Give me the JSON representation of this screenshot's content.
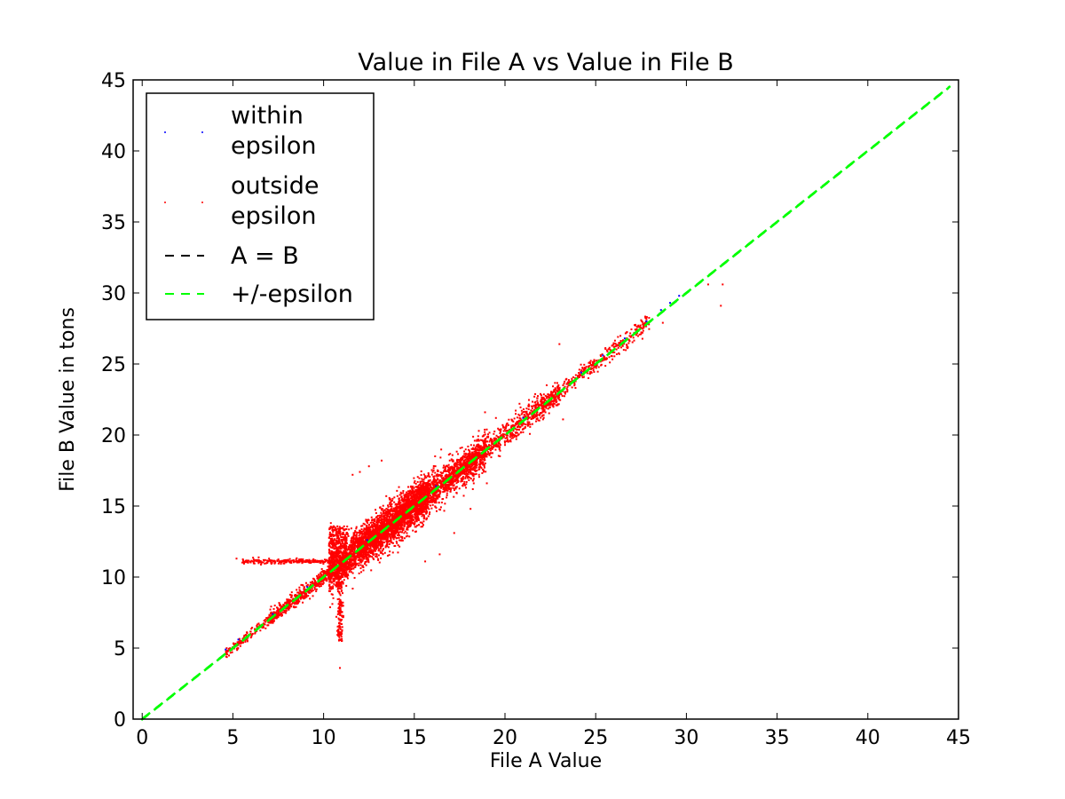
{
  "chart_data": {
    "type": "scatter",
    "title": "Value in File A vs Value in File B",
    "xlabel": "File A Value",
    "ylabel": "File B Value in tons",
    "xlim": [
      -0.5,
      45
    ],
    "ylim": [
      0,
      45
    ],
    "x_ticks": [
      0,
      5,
      10,
      15,
      20,
      25,
      30,
      35,
      40,
      45
    ],
    "y_ticks": [
      0,
      5,
      10,
      15,
      20,
      25,
      30,
      35,
      40,
      45
    ],
    "grid": false,
    "legend_position": "top-left",
    "series": [
      {
        "name": "within epsilon",
        "kind": "points",
        "color": "#0000ff",
        "points": [
          [
            4.6,
            4.9
          ],
          [
            5.3,
            5.6
          ],
          [
            7.2,
            7.4
          ],
          [
            9.1,
            9.3
          ],
          [
            12.4,
            12.6
          ],
          [
            16.2,
            16.4
          ],
          [
            21.0,
            21.2
          ],
          [
            24.2,
            24.4
          ],
          [
            25.4,
            25.6
          ],
          [
            26.6,
            26.8
          ],
          [
            27.8,
            28.0
          ],
          [
            28.6,
            28.8
          ],
          [
            29.1,
            29.3
          ],
          [
            29.6,
            29.8
          ]
        ]
      },
      {
        "name": "outside epsilon",
        "kind": "points",
        "color": "#ff0000",
        "points": [
          [
            5.2,
            11.3
          ],
          [
            5.8,
            11.1
          ],
          [
            6.4,
            11.2
          ],
          [
            6.9,
            11.0
          ],
          [
            7.5,
            11.2
          ],
          [
            8.1,
            11.1
          ],
          [
            8.7,
            11.2
          ],
          [
            9.3,
            11.0
          ],
          [
            9.9,
            11.1
          ],
          [
            10.4,
            13.8
          ],
          [
            10.5,
            13.0
          ],
          [
            10.6,
            12.2
          ],
          [
            10.6,
            11.4
          ],
          [
            10.8,
            9.2
          ],
          [
            10.9,
            8.0
          ],
          [
            11.0,
            7.0
          ],
          [
            11.0,
            6.0
          ],
          [
            11.0,
            5.5
          ],
          [
            10.9,
            3.6
          ],
          [
            11.6,
            17.2
          ],
          [
            12.0,
            17.4
          ],
          [
            12.5,
            17.8
          ],
          [
            13.2,
            18.2
          ],
          [
            15.6,
            11.1
          ],
          [
            16.4,
            11.6
          ],
          [
            17.2,
            13.1
          ],
          [
            18.1,
            14.8
          ],
          [
            19.0,
            16.6
          ],
          [
            18.9,
            21.6
          ],
          [
            19.5,
            21.2
          ],
          [
            20.8,
            22.2
          ],
          [
            22.0,
            22.8
          ],
          [
            22.9,
            23.3
          ],
          [
            23.2,
            21.1
          ],
          [
            23.0,
            26.4
          ],
          [
            24.6,
            24.0
          ],
          [
            26.3,
            25.7
          ],
          [
            27.5,
            27.1
          ],
          [
            28.7,
            27.9
          ],
          [
            31.2,
            30.6
          ],
          [
            31.9,
            29.1
          ],
          [
            32.0,
            30.6
          ]
        ],
        "clusters": [
          {
            "xmin": 10.3,
            "xmax": 15.8,
            "cy": 12.5,
            "spread_x": 1.6,
            "spread_y": 1.3,
            "count": 2600
          },
          {
            "xmin": 12.0,
            "xmax": 19.0,
            "cy": 15.2,
            "spread_x": 1.8,
            "spread_y": 1.2,
            "count": 1800
          },
          {
            "xmin": 16.0,
            "xmax": 23.0,
            "cy": 19.4,
            "spread_x": 1.2,
            "spread_y": 0.8,
            "count": 900
          },
          {
            "xmin": 22.0,
            "xmax": 28.0,
            "cy": 24.8,
            "spread_x": 1.0,
            "spread_y": 0.5,
            "count": 380
          },
          {
            "xmin": 7.0,
            "xmax": 10.5,
            "cy": 9.6,
            "spread_x": 0.9,
            "spread_y": 0.5,
            "count": 500
          },
          {
            "xmin": 4.6,
            "xmax": 7.5,
            "cy": 6.0,
            "spread_x": 0.8,
            "spread_y": 0.3,
            "count": 160
          }
        ]
      },
      {
        "name": "A = B",
        "kind": "line",
        "color": "#000000",
        "dash": "dashed",
        "x": [
          0,
          44.5
        ],
        "y": [
          0,
          44.5
        ]
      },
      {
        "name": "+/-epsilon",
        "kind": "line",
        "color": "#00ff00",
        "dash": "dashed",
        "x": [
          0,
          44.5
        ],
        "y": [
          0,
          44.5
        ]
      }
    ]
  }
}
